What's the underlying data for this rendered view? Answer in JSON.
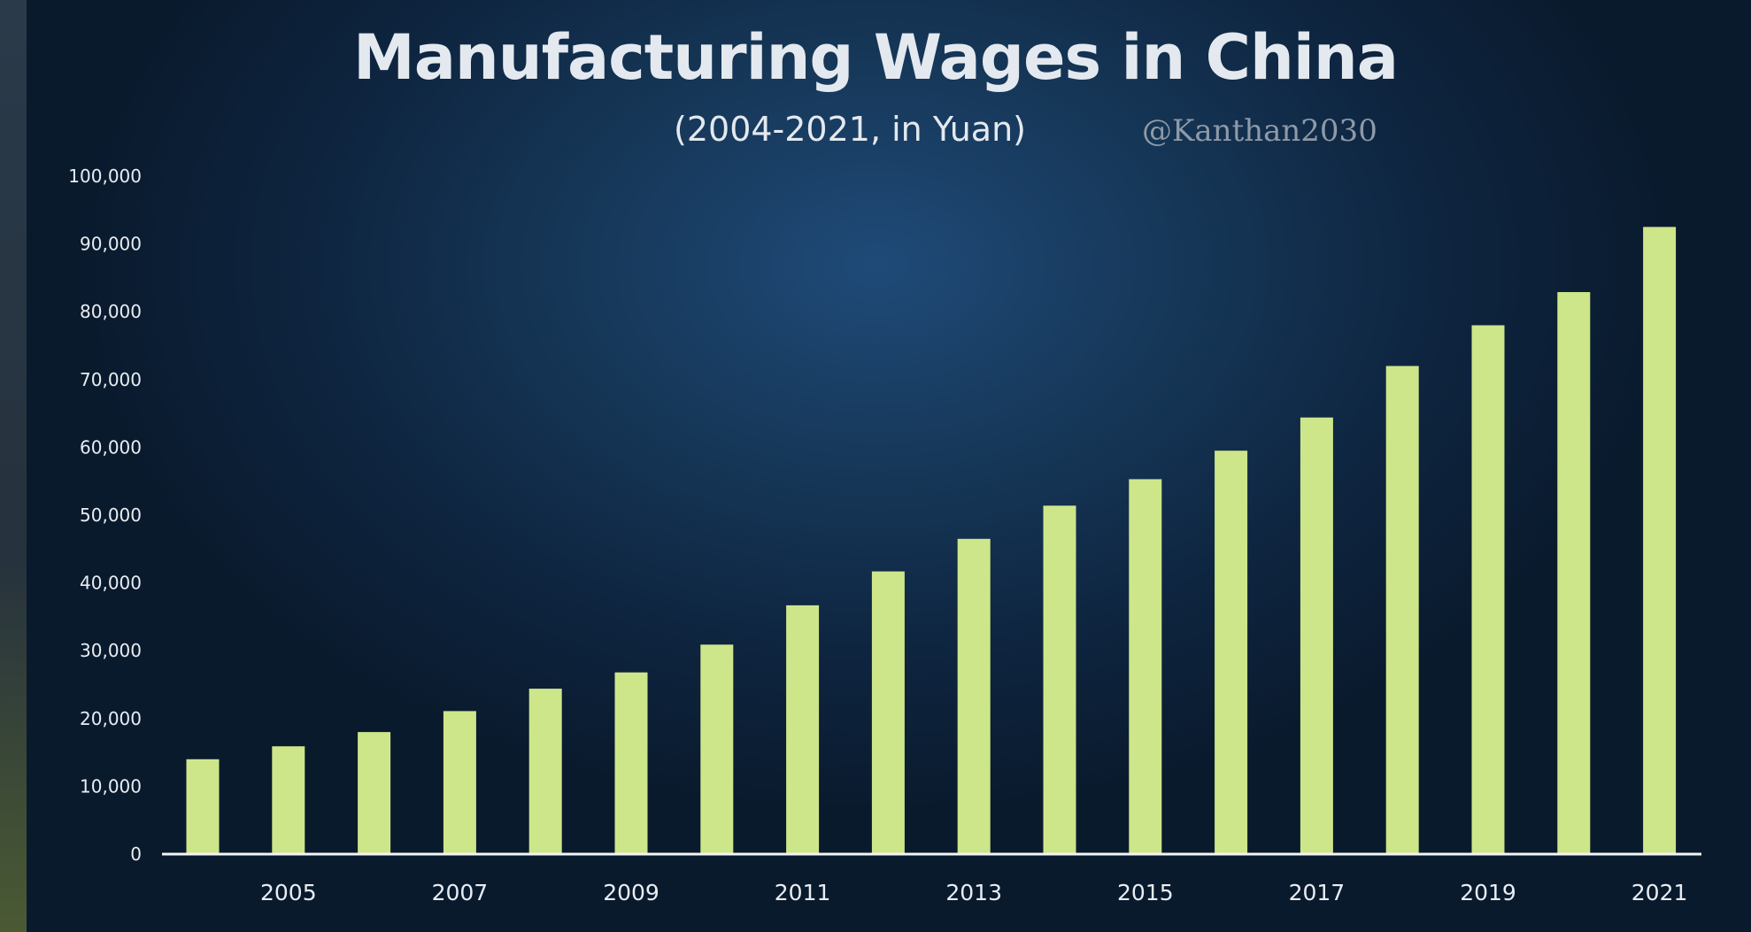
{
  "chart_data": {
    "type": "bar",
    "title": "Manufacturing Wages in China",
    "subtitle": "(2004-2021, in Yuan)",
    "watermark": "@Kanthan2030",
    "xlabel": "",
    "ylabel": "",
    "ylim": [
      0,
      100000
    ],
    "yticks": [
      0,
      10000,
      20000,
      30000,
      40000,
      50000,
      60000,
      70000,
      80000,
      90000,
      100000
    ],
    "ytick_labels": [
      "0",
      "10,000",
      "20,000",
      "30,000",
      "40,000",
      "50,000",
      "60,000",
      "70,000",
      "80,000",
      "90,000",
      "100,000"
    ],
    "categories": [
      "2004",
      "2005",
      "2006",
      "2007",
      "2008",
      "2009",
      "2010",
      "2011",
      "2012",
      "2013",
      "2014",
      "2015",
      "2016",
      "2017",
      "2018",
      "2019",
      "2020",
      "2021"
    ],
    "xtick_labels": [
      "",
      "2005",
      "",
      "2007",
      "",
      "2009",
      "",
      "2011",
      "",
      "2013",
      "",
      "2015",
      "",
      "2017",
      "",
      "2019",
      "",
      "2021"
    ],
    "values": [
      14000,
      15900,
      18000,
      21100,
      24400,
      26800,
      30900,
      36700,
      41700,
      46500,
      51400,
      55300,
      59500,
      64400,
      72000,
      78000,
      82900,
      92500
    ],
    "bar_color": "#cde68a",
    "grid": false,
    "legend": "none"
  }
}
